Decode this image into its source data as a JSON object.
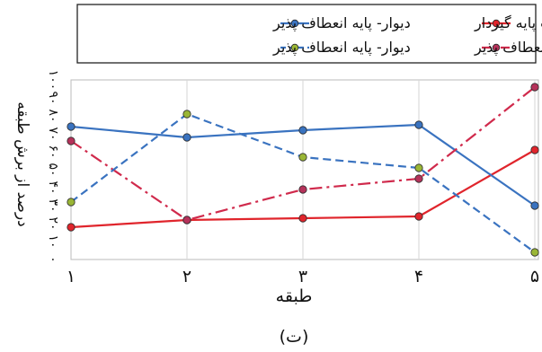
{
  "chart_data": {
    "type": "line",
    "xlabel": "طبقه",
    "ylabel": "درصد از برش طبقه",
    "caption": "(ت)",
    "categories": [
      "۱",
      "۲",
      "۳",
      "۴",
      "۵"
    ],
    "ylim": [
      0,
      100
    ],
    "yticks": [
      "۰",
      "۱۰",
      "۲۰",
      "۳۰",
      "۴۰",
      "۵۰",
      "۶۰",
      "۷۰",
      "۸۰",
      "۹۰",
      "۱۰۰"
    ],
    "grid": "vertical",
    "legend_position": "top",
    "series": [
      {
        "name": "قاب پایه گیردار",
        "values": [
          18,
          22,
          23,
          24,
          61
        ],
        "color": "#e0252c",
        "dash": "solid"
      },
      {
        "name": "دیوار- پایه انعطاف پذیر",
        "values": [
          74,
          68,
          72,
          75,
          30
        ],
        "color": "#3a73c0",
        "dash": "solid"
      },
      {
        "name": "قاب- پایه انعطاف پذیر",
        "values": [
          66,
          22,
          39,
          45,
          96
        ],
        "color": "#d02a4c",
        "dash": "dashdot"
      },
      {
        "name": "دیوار- پایه انعطاف پذیر",
        "values": [
          32,
          81,
          57,
          51,
          4
        ],
        "color": "#3a73c0",
        "dash": "dashed"
      }
    ],
    "marker_fills": [
      "#e0252c",
      "#3a73c0",
      "#b5325a",
      "#9ab636"
    ]
  }
}
